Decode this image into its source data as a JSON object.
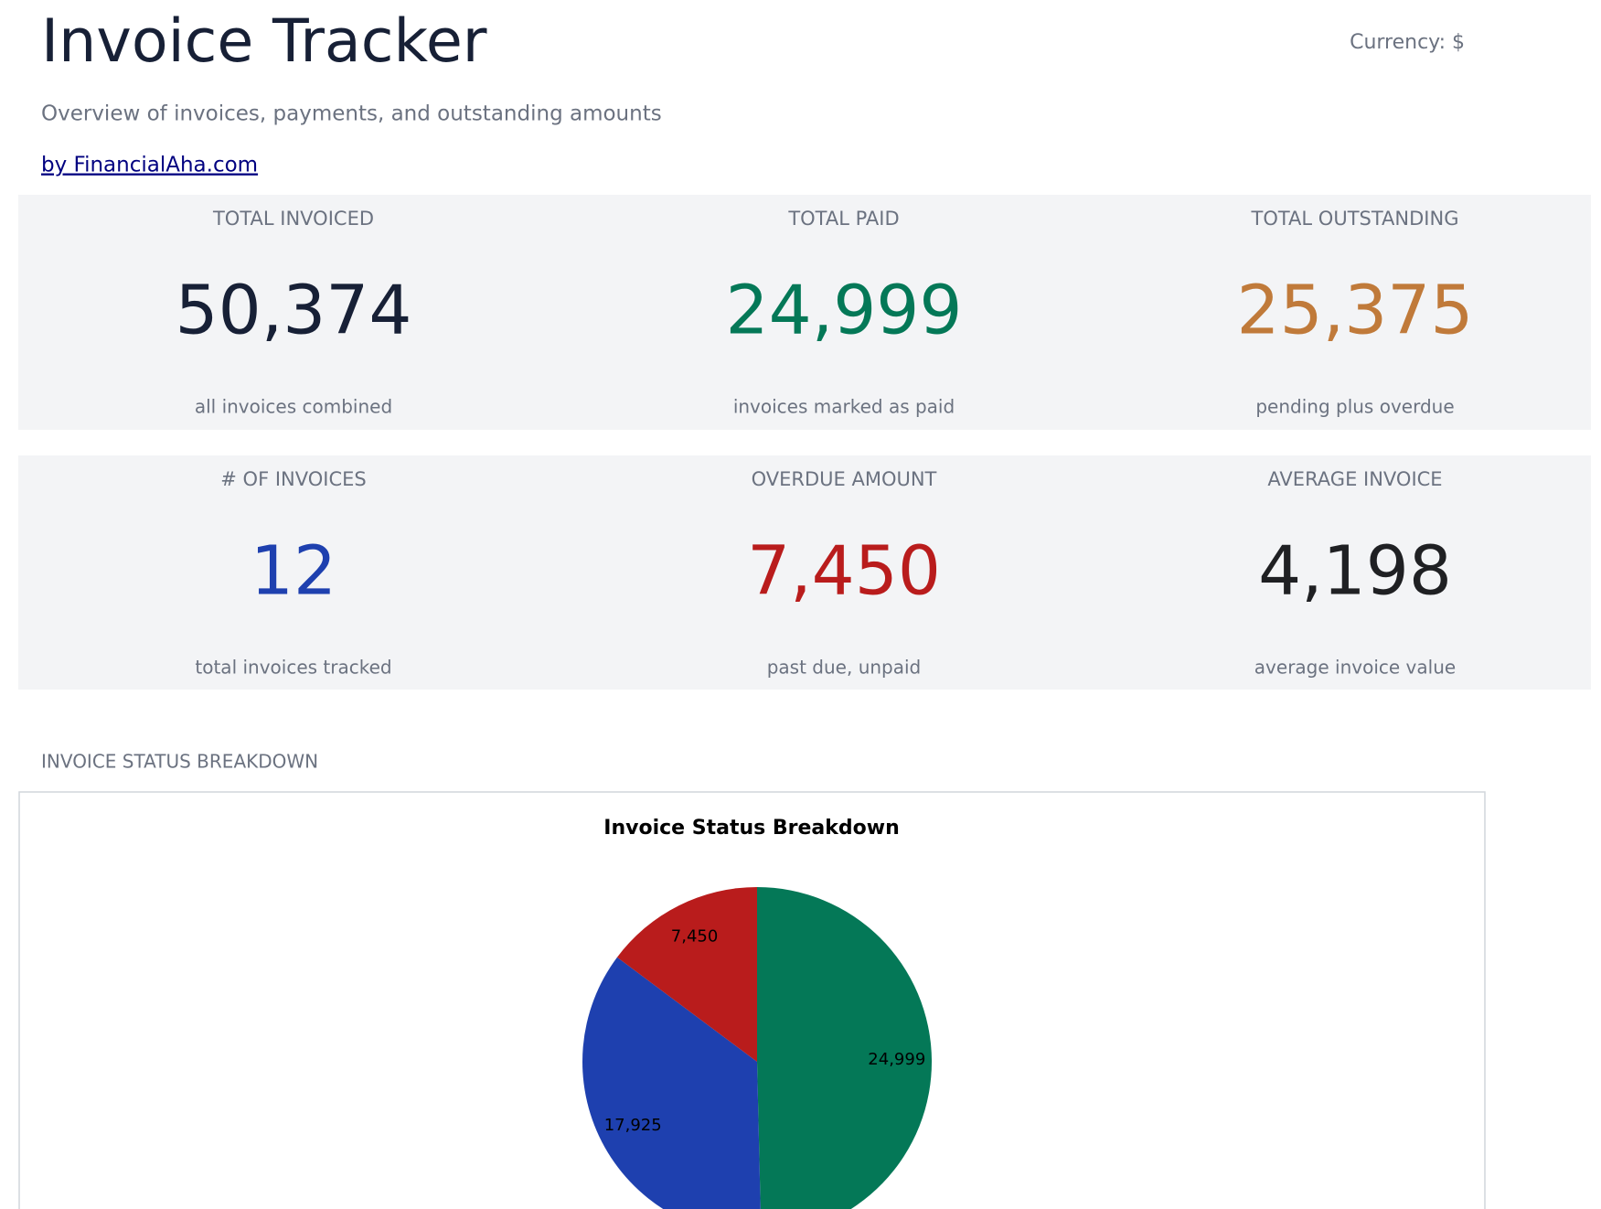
{
  "header": {
    "title": "Invoice Tracker",
    "currency": "Currency: $",
    "subtitle": "Overview of invoices, payments, and outstanding amounts",
    "link": "by FinancialAha.com"
  },
  "cards": [
    {
      "label": "TOTAL INVOICED",
      "value": "50,374",
      "note": "all invoices combined",
      "color": "#172036"
    },
    {
      "label": "TOTAL PAID",
      "value": "24,999",
      "note": "invoices marked as paid",
      "color": "#047857"
    },
    {
      "label": "TOTAL OUTSTANDING",
      "value": "25,375",
      "note": "pending plus overdue",
      "color": "#c07a3a"
    },
    {
      "label": "# OF INVOICES",
      "value": "12",
      "note": "total invoices tracked",
      "color": "#1e40af"
    },
    {
      "label": "OVERDUE AMOUNT",
      "value": "7,450",
      "note": "past due, unpaid",
      "color": "#b91c1c"
    },
    {
      "label": "AVERAGE INVOICE",
      "value": "4,198",
      "note": "average invoice value",
      "color": "#1f2023"
    }
  ],
  "section_label": "INVOICE STATUS BREAKDOWN",
  "chart_data": {
    "type": "pie",
    "title": "Invoice Status Breakdown",
    "values": [
      24999,
      17925,
      7450
    ],
    "value_labels": [
      "24,999",
      "17,925",
      "7,450"
    ],
    "colors": [
      "#047857",
      "#1e40af",
      "#b91c1c"
    ]
  }
}
